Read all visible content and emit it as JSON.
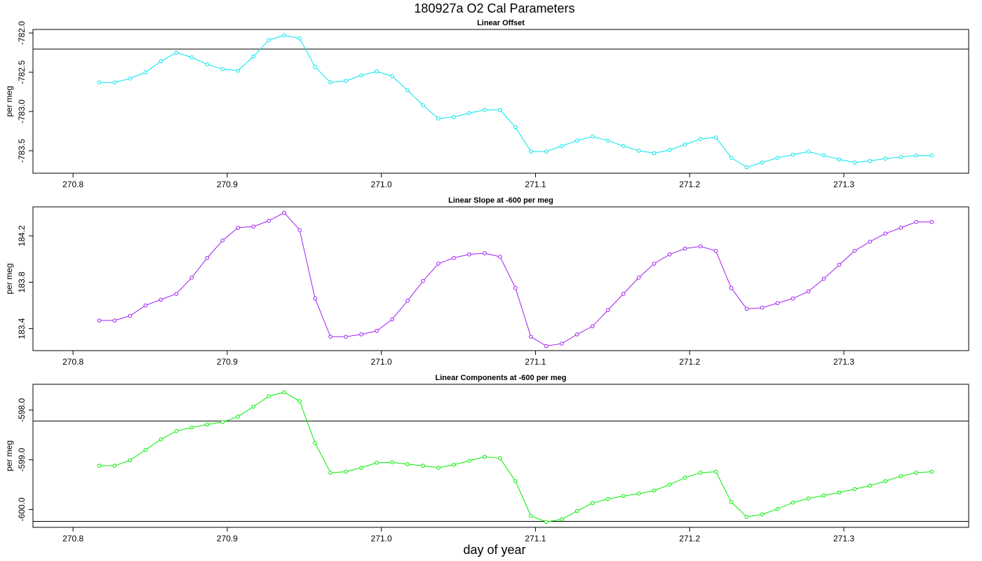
{
  "title": "180927a   O2 Cal Parameters",
  "xlabel": "day of year",
  "chart_data": [
    {
      "type": "line",
      "title": "Linear Offset",
      "ylabel": "per meg",
      "color": "#00e5ee",
      "xlim": [
        270.774,
        271.381
      ],
      "xticks": [
        270.8,
        270.9,
        {
          "value": 271,
          "label": "271.0"
        },
        271.1,
        271.2,
        271.3
      ],
      "ylim": [
        -783.786,
        -781.955
      ],
      "yticks": [
        {
          "value": -782,
          "label": "-782.0"
        },
        -782.5,
        {
          "value": -783,
          "label": "-783.0"
        },
        -783.5
      ],
      "hlines": [
        -782.205
      ],
      "x": [
        270.817,
        270.827,
        270.837,
        270.847,
        270.857,
        270.867,
        270.877,
        270.887,
        270.897,
        270.907,
        270.917,
        270.927,
        270.937,
        270.947,
        270.957,
        270.967,
        270.977,
        270.987,
        270.997,
        271.007,
        271.017,
        271.027,
        271.037,
        271.047,
        271.057,
        271.067,
        271.077,
        271.087,
        271.097,
        271.107,
        271.117,
        271.127,
        271.137,
        271.147,
        271.157,
        271.167,
        271.177,
        271.187,
        271.197,
        271.207,
        271.217,
        271.227,
        271.237,
        271.247,
        271.257,
        271.267,
        271.277,
        271.287,
        271.297,
        271.307,
        271.317,
        271.327,
        271.337,
        271.347,
        271.357
      ],
      "values": [
        -782.63,
        -782.63,
        -782.58,
        -782.5,
        -782.36,
        -782.25,
        -782.31,
        -782.4,
        -782.46,
        -782.48,
        -782.3,
        -782.09,
        -782.03,
        -782.07,
        -782.43,
        -782.63,
        -782.61,
        -782.54,
        -782.49,
        -782.55,
        -782.73,
        -782.92,
        -783.09,
        -783.07,
        -783.02,
        -782.98,
        -782.98,
        -783.2,
        -783.51,
        -783.51,
        -783.44,
        -783.37,
        -783.32,
        -783.37,
        -783.44,
        -783.5,
        -783.53,
        -783.49,
        -783.42,
        -783.35,
        -783.33,
        -783.59,
        -783.71,
        -783.65,
        -783.59,
        -783.55,
        -783.51,
        -783.56,
        -783.61,
        -783.65,
        -783.63,
        -783.6,
        -783.58,
        -783.56,
        -783.56
      ]
    },
    {
      "type": "line",
      "title": "Linear Slope at -600 per meg",
      "ylabel": "per meg",
      "color": "#a020f0",
      "xlim": [
        270.774,
        271.381
      ],
      "xticks": [
        270.8,
        270.9,
        {
          "value": 271,
          "label": "271.0"
        },
        271.1,
        271.2,
        271.3
      ],
      "ylim": [
        183.21,
        184.45
      ],
      "yticks": [
        183.4,
        183.8,
        184.2
      ],
      "x": [
        270.817,
        270.827,
        270.837,
        270.847,
        270.857,
        270.867,
        270.877,
        270.887,
        270.897,
        270.907,
        270.917,
        270.927,
        270.937,
        270.947,
        270.957,
        270.967,
        270.977,
        270.987,
        270.997,
        271.007,
        271.017,
        271.027,
        271.037,
        271.047,
        271.057,
        271.067,
        271.077,
        271.087,
        271.097,
        271.107,
        271.117,
        271.127,
        271.137,
        271.147,
        271.157,
        271.167,
        271.177,
        271.187,
        271.197,
        271.207,
        271.217,
        271.227,
        271.237,
        271.247,
        271.257,
        271.267,
        271.277,
        271.287,
        271.297,
        271.307,
        271.317,
        271.327,
        271.337,
        271.347,
        271.357
      ],
      "values": [
        183.47,
        183.47,
        183.51,
        183.6,
        183.65,
        183.7,
        183.84,
        184.01,
        184.16,
        184.27,
        184.28,
        184.33,
        184.4,
        184.25,
        183.66,
        183.33,
        183.33,
        183.35,
        183.38,
        183.48,
        183.64,
        183.81,
        183.96,
        184.01,
        184.04,
        184.05,
        184.02,
        183.75,
        183.33,
        183.25,
        183.27,
        183.35,
        183.42,
        183.56,
        183.7,
        183.84,
        183.96,
        184.04,
        184.09,
        184.11,
        184.07,
        183.75,
        183.57,
        183.58,
        183.62,
        183.66,
        183.72,
        183.83,
        183.95,
        184.07,
        184.15,
        184.22,
        184.27,
        184.32,
        184.32
      ]
    },
    {
      "type": "line",
      "title": "Linear Components at -600 per meg",
      "ylabel": "per meg",
      "color": "#00ee00",
      "xlim": [
        270.774,
        271.381
      ],
      "xticks": [
        270.8,
        270.9,
        {
          "value": 271,
          "label": "271.0"
        },
        271.1,
        271.2,
        271.3
      ],
      "ylim": [
        -600.36,
        -597.48
      ],
      "yticks": [
        {
          "value": -598,
          "label": "-598.0"
        },
        {
          "value": -599,
          "label": "-599.0"
        },
        {
          "value": -600,
          "label": "-600.0"
        }
      ],
      "hlines": [
        -598.22,
        -600.24
      ],
      "x": [
        270.817,
        270.827,
        270.837,
        270.847,
        270.857,
        270.867,
        270.877,
        270.887,
        270.897,
        270.907,
        270.917,
        270.927,
        270.937,
        270.947,
        270.957,
        270.967,
        270.977,
        270.987,
        270.997,
        271.007,
        271.017,
        271.027,
        271.037,
        271.047,
        271.057,
        271.067,
        271.077,
        271.087,
        271.097,
        271.107,
        271.117,
        271.127,
        271.137,
        271.147,
        271.157,
        271.167,
        271.177,
        271.187,
        271.197,
        271.207,
        271.217,
        271.227,
        271.237,
        271.247,
        271.257,
        271.267,
        271.277,
        271.287,
        271.297,
        271.307,
        271.317,
        271.327,
        271.337,
        271.347,
        271.357
      ],
      "values": [
        -599.12,
        -599.12,
        -599.01,
        -598.8,
        -598.59,
        -598.42,
        -598.35,
        -598.29,
        -598.24,
        -598.13,
        -597.93,
        -597.72,
        -597.64,
        -597.82,
        -598.66,
        -599.26,
        -599.24,
        -599.16,
        -599.06,
        -599.05,
        -599.09,
        -599.12,
        -599.16,
        -599.1,
        -599.02,
        -598.94,
        -598.97,
        -599.43,
        -600.13,
        -600.25,
        -600.2,
        -600.03,
        -599.87,
        -599.79,
        -599.73,
        -599.68,
        -599.62,
        -599.5,
        -599.36,
        -599.26,
        -599.24,
        -599.85,
        -600.15,
        -600.1,
        -599.99,
        -599.86,
        -599.78,
        -599.72,
        -599.66,
        -599.59,
        -599.52,
        -599.43,
        -599.33,
        -599.26,
        -599.24
      ]
    }
  ]
}
